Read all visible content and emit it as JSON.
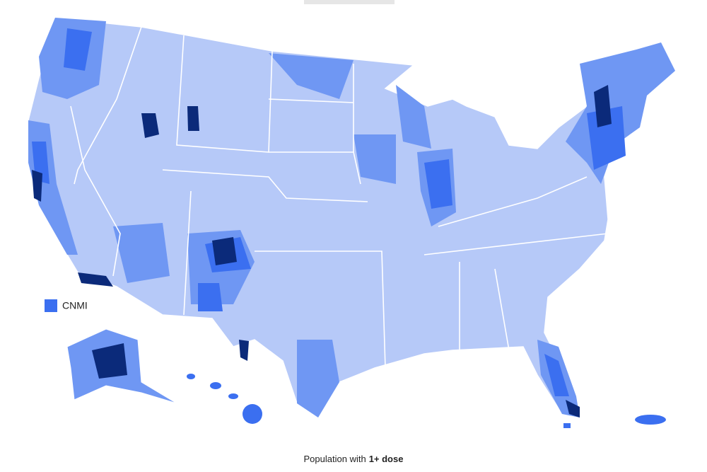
{
  "legend": {
    "label": "CNMI"
  },
  "caption": {
    "text": "Population with",
    "emphasis": "1+ dose"
  }
}
